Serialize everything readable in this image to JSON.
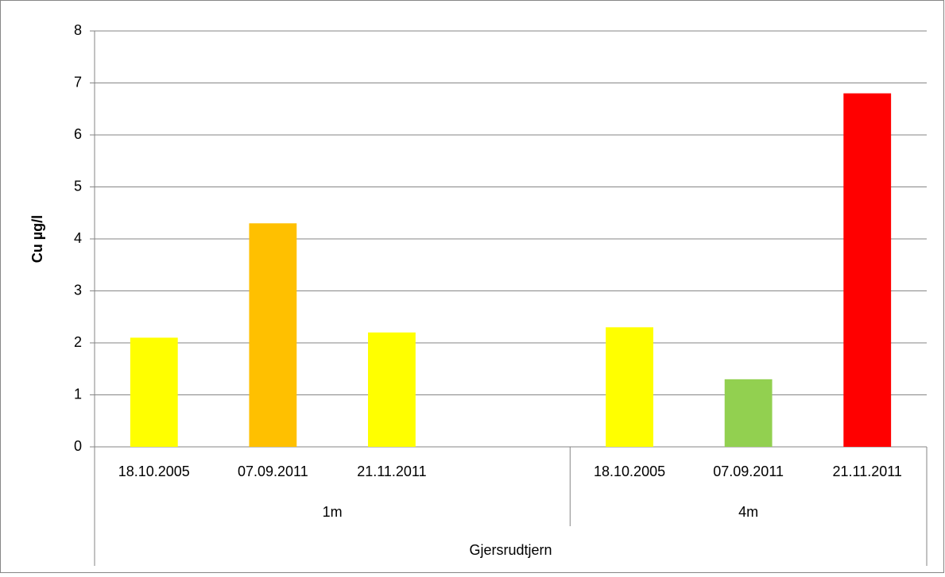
{
  "chart_data": {
    "type": "bar",
    "y_label": "Cu µg/l",
    "categories": [
      "18.10.2005",
      "07.09.2011",
      "21.11.2011",
      null,
      "18.10.2005",
      "07.09.2011",
      "21.11.2011"
    ],
    "category_groups": [
      "1m",
      "1m",
      "1m",
      "1m",
      "4m",
      "4m",
      "4m"
    ],
    "outer_label": "Gjersrudtjern",
    "values": [
      2.1,
      4.3,
      2.2,
      null,
      2.3,
      1.3,
      6.8
    ],
    "colors": [
      "#ffff00",
      "#ffc000",
      "#ffff00",
      null,
      "#ffff00",
      "#92d050",
      "#ff0000"
    ],
    "ylim": [
      0,
      8
    ],
    "yticks": [
      0,
      1,
      2,
      3,
      4,
      5,
      6,
      7,
      8
    ],
    "grid": true
  }
}
